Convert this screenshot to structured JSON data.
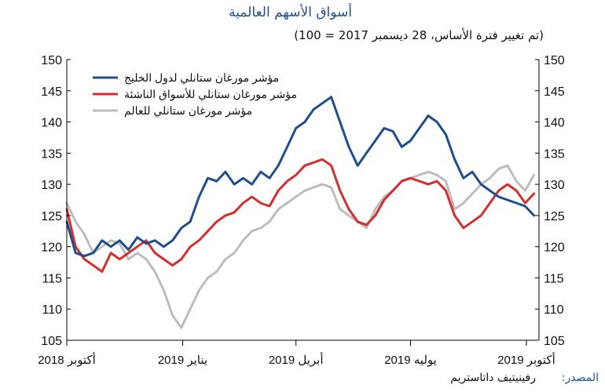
{
  "title": "أسواق الأسهم العالمية",
  "subtitle": "(تم تغيير فترة الأساس، 28 ديسمبر 2017 = 100)",
  "source": {
    "label": "المصدر:",
    "value": "رفينيتيف داتاستريم"
  },
  "colors": {
    "gulf": "#1f4e8c",
    "em": "#d32f2f",
    "world": "#bdbdbd",
    "axis": "#000000"
  },
  "chart_data": {
    "type": "line",
    "title": "أسواق الأسهم العالمية",
    "subtitle": "(تم تغيير فترة الأساس، 28 ديسمبر 2017 = 100)",
    "ylim": [
      105,
      150
    ],
    "y_ticks": [
      105,
      110,
      115,
      120,
      125,
      130,
      135,
      140,
      145,
      150
    ],
    "y_tick_labels": [
      "105",
      "110",
      "115",
      "120",
      "125",
      "130",
      "135",
      "140",
      "145",
      "150"
    ],
    "secondary_y_axis": true,
    "x_range": [
      "2018-10-01",
      "2019-10-11"
    ],
    "x_ticks": [
      {
        "date": "2018-10-01",
        "label": "أكتوبر 2018"
      },
      {
        "date": "2019-01-01",
        "label": "يناير 2019"
      },
      {
        "date": "2019-04-01",
        "label": "أبريل 2019"
      },
      {
        "date": "2019-07-01",
        "label": "يوليه 2019"
      },
      {
        "date": "2019-10-01",
        "label": "أكتوبر 2019"
      }
    ],
    "legend_position": "top-left",
    "grid": false,
    "series": [
      {
        "name": "مؤشر مورغان ستانلي لدول الخليج",
        "color": "#1f4e8c",
        "points": [
          [
            "2018-10-01",
            124.0
          ],
          [
            "2018-10-08",
            119.0
          ],
          [
            "2018-10-15",
            118.5
          ],
          [
            "2018-10-22",
            119.0
          ],
          [
            "2018-10-29",
            121.0
          ],
          [
            "2018-11-05",
            120.0
          ],
          [
            "2018-11-12",
            121.0
          ],
          [
            "2018-11-19",
            119.5
          ],
          [
            "2018-11-26",
            121.5
          ],
          [
            "2018-12-03",
            120.5
          ],
          [
            "2018-12-10",
            121.0
          ],
          [
            "2018-12-17",
            120.0
          ],
          [
            "2018-12-24",
            121.0
          ],
          [
            "2018-12-31",
            123.0
          ],
          [
            "2019-01-07",
            124.0
          ],
          [
            "2019-01-14",
            128.0
          ],
          [
            "2019-01-21",
            131.0
          ],
          [
            "2019-01-28",
            130.5
          ],
          [
            "2019-02-04",
            132.0
          ],
          [
            "2019-02-11",
            130.0
          ],
          [
            "2019-02-18",
            131.0
          ],
          [
            "2019-02-25",
            130.0
          ],
          [
            "2019-03-04",
            132.0
          ],
          [
            "2019-03-11",
            131.0
          ],
          [
            "2019-03-18",
            133.0
          ],
          [
            "2019-03-25",
            136.0
          ],
          [
            "2019-04-01",
            139.0
          ],
          [
            "2019-04-08",
            140.0
          ],
          [
            "2019-04-15",
            142.0
          ],
          [
            "2019-04-22",
            143.0
          ],
          [
            "2019-04-29",
            144.0
          ],
          [
            "2019-05-06",
            140.0
          ],
          [
            "2019-05-13",
            136.0
          ],
          [
            "2019-05-20",
            133.0
          ],
          [
            "2019-05-27",
            135.0
          ],
          [
            "2019-06-03",
            137.0
          ],
          [
            "2019-06-10",
            139.0
          ],
          [
            "2019-06-17",
            138.5
          ],
          [
            "2019-06-24",
            136.0
          ],
          [
            "2019-07-01",
            137.0
          ],
          [
            "2019-07-08",
            139.0
          ],
          [
            "2019-07-15",
            141.0
          ],
          [
            "2019-07-22",
            140.0
          ],
          [
            "2019-07-29",
            138.0
          ],
          [
            "2019-08-05",
            134.0
          ],
          [
            "2019-08-12",
            131.0
          ],
          [
            "2019-08-19",
            132.0
          ],
          [
            "2019-08-26",
            130.0
          ],
          [
            "2019-09-02",
            129.0
          ],
          [
            "2019-09-09",
            128.0
          ],
          [
            "2019-09-16",
            127.5
          ],
          [
            "2019-09-23",
            127.0
          ],
          [
            "2019-09-30",
            126.5
          ],
          [
            "2019-10-07",
            125.0
          ]
        ]
      },
      {
        "name": "مؤشر مورغان ستانلي للأسواق الناشئة",
        "color": "#d32f2f",
        "points": [
          [
            "2018-10-01",
            126.0
          ],
          [
            "2018-10-08",
            120.0
          ],
          [
            "2018-10-15",
            118.0
          ],
          [
            "2018-10-22",
            117.0
          ],
          [
            "2018-10-29",
            116.0
          ],
          [
            "2018-11-05",
            119.0
          ],
          [
            "2018-11-12",
            118.0
          ],
          [
            "2018-11-19",
            119.0
          ],
          [
            "2018-11-26",
            120.0
          ],
          [
            "2018-12-03",
            121.0
          ],
          [
            "2018-12-10",
            119.0
          ],
          [
            "2018-12-17",
            118.0
          ],
          [
            "2018-12-24",
            117.0
          ],
          [
            "2018-12-31",
            118.0
          ],
          [
            "2019-01-07",
            120.0
          ],
          [
            "2019-01-14",
            121.0
          ],
          [
            "2019-01-21",
            122.5
          ],
          [
            "2019-01-28",
            124.0
          ],
          [
            "2019-02-04",
            125.0
          ],
          [
            "2019-02-11",
            125.5
          ],
          [
            "2019-02-18",
            127.0
          ],
          [
            "2019-02-25",
            128.0
          ],
          [
            "2019-03-04",
            127.0
          ],
          [
            "2019-03-11",
            126.5
          ],
          [
            "2019-03-18",
            129.0
          ],
          [
            "2019-03-25",
            130.5
          ],
          [
            "2019-04-01",
            131.5
          ],
          [
            "2019-04-08",
            133.0
          ],
          [
            "2019-04-15",
            133.5
          ],
          [
            "2019-04-22",
            134.0
          ],
          [
            "2019-04-29",
            133.0
          ],
          [
            "2019-05-06",
            129.0
          ],
          [
            "2019-05-13",
            126.0
          ],
          [
            "2019-05-20",
            124.0
          ],
          [
            "2019-05-27",
            123.5
          ],
          [
            "2019-06-03",
            125.0
          ],
          [
            "2019-06-10",
            127.5
          ],
          [
            "2019-06-17",
            129.0
          ],
          [
            "2019-06-24",
            130.5
          ],
          [
            "2019-07-01",
            131.0
          ],
          [
            "2019-07-08",
            130.5
          ],
          [
            "2019-07-15",
            130.0
          ],
          [
            "2019-07-22",
            130.5
          ],
          [
            "2019-07-29",
            129.0
          ],
          [
            "2019-08-05",
            125.0
          ],
          [
            "2019-08-12",
            123.0
          ],
          [
            "2019-08-19",
            124.0
          ],
          [
            "2019-08-26",
            125.0
          ],
          [
            "2019-09-02",
            127.0
          ],
          [
            "2019-09-09",
            129.0
          ],
          [
            "2019-09-16",
            130.0
          ],
          [
            "2019-09-23",
            129.0
          ],
          [
            "2019-09-30",
            127.0
          ],
          [
            "2019-10-07",
            128.5
          ]
        ]
      },
      {
        "name": "مؤشر مورغان ستانلي للعالم",
        "color": "#bdbdbd",
        "points": [
          [
            "2018-10-01",
            127.0
          ],
          [
            "2018-10-08",
            124.0
          ],
          [
            "2018-10-15",
            122.0
          ],
          [
            "2018-10-22",
            119.0
          ],
          [
            "2018-10-29",
            120.0
          ],
          [
            "2018-11-05",
            121.0
          ],
          [
            "2018-11-12",
            120.5
          ],
          [
            "2018-11-19",
            118.0
          ],
          [
            "2018-11-26",
            119.0
          ],
          [
            "2018-12-03",
            118.0
          ],
          [
            "2018-12-10",
            116.0
          ],
          [
            "2018-12-17",
            113.0
          ],
          [
            "2018-12-24",
            109.0
          ],
          [
            "2018-12-31",
            107.0
          ],
          [
            "2019-01-07",
            110.0
          ],
          [
            "2019-01-14",
            113.0
          ],
          [
            "2019-01-21",
            115.0
          ],
          [
            "2019-01-28",
            116.0
          ],
          [
            "2019-02-04",
            118.0
          ],
          [
            "2019-02-11",
            119.0
          ],
          [
            "2019-02-18",
            121.0
          ],
          [
            "2019-02-25",
            122.5
          ],
          [
            "2019-03-04",
            123.0
          ],
          [
            "2019-03-11",
            124.0
          ],
          [
            "2019-03-18",
            126.0
          ],
          [
            "2019-03-25",
            127.0
          ],
          [
            "2019-04-01",
            128.0
          ],
          [
            "2019-04-08",
            129.0
          ],
          [
            "2019-04-15",
            129.5
          ],
          [
            "2019-04-22",
            130.0
          ],
          [
            "2019-04-29",
            129.5
          ],
          [
            "2019-05-06",
            126.0
          ],
          [
            "2019-05-13",
            125.0
          ],
          [
            "2019-05-20",
            124.0
          ],
          [
            "2019-05-27",
            123.0
          ],
          [
            "2019-06-03",
            126.0
          ],
          [
            "2019-06-10",
            128.0
          ],
          [
            "2019-06-17",
            129.0
          ],
          [
            "2019-06-24",
            130.5
          ],
          [
            "2019-07-01",
            131.0
          ],
          [
            "2019-07-08",
            131.5
          ],
          [
            "2019-07-15",
            132.0
          ],
          [
            "2019-07-22",
            131.5
          ],
          [
            "2019-07-29",
            130.5
          ],
          [
            "2019-08-05",
            126.0
          ],
          [
            "2019-08-12",
            127.0
          ],
          [
            "2019-08-19",
            128.5
          ],
          [
            "2019-08-26",
            130.0
          ],
          [
            "2019-09-02",
            131.0
          ],
          [
            "2019-09-09",
            132.5
          ],
          [
            "2019-09-16",
            133.0
          ],
          [
            "2019-09-23",
            130.5
          ],
          [
            "2019-09-30",
            129.0
          ],
          [
            "2019-10-07",
            131.5
          ]
        ]
      }
    ]
  }
}
